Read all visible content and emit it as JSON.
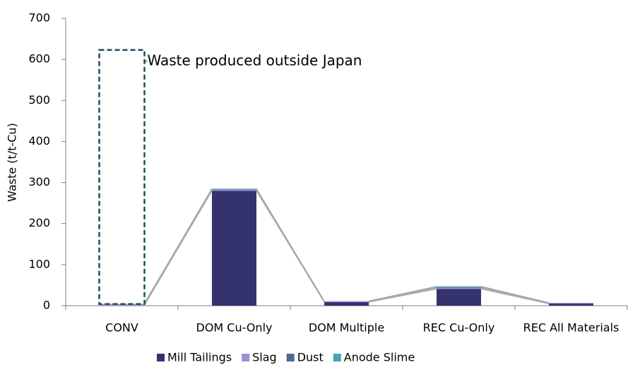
{
  "chart_data": {
    "type": "stacked_bar",
    "y_label": "Waste (t/t-Cu)",
    "categories": [
      "CONV",
      "DOM Cu-Only",
      "DOM Multiple",
      "REC Cu-Only",
      "REC All Materials"
    ],
    "series": [
      {
        "name": "Mill Tailings",
        "color": "#35336e",
        "values": [
          0,
          280,
          9,
          41,
          5
        ]
      },
      {
        "name": "Slag",
        "color": "#9b8fd6",
        "values": [
          3,
          3,
          2,
          3,
          2
        ]
      },
      {
        "name": "Dust",
        "color": "#4d6a96",
        "values": [
          1,
          1,
          0,
          2,
          0
        ]
      },
      {
        "name": "Anode Slime",
        "color": "#4aa3b0",
        "values": [
          0,
          1,
          0,
          1,
          0
        ]
      }
    ],
    "annotation": {
      "label": "Waste produced outside Japan",
      "value": 623,
      "color": "#1f4e5f"
    },
    "ylim": [
      0,
      700
    ],
    "yticks": [
      0,
      100,
      200,
      300,
      400,
      500,
      600,
      700
    ],
    "series_lines": true,
    "series_line_color": "#a6a6a6",
    "legend": "bottom"
  }
}
